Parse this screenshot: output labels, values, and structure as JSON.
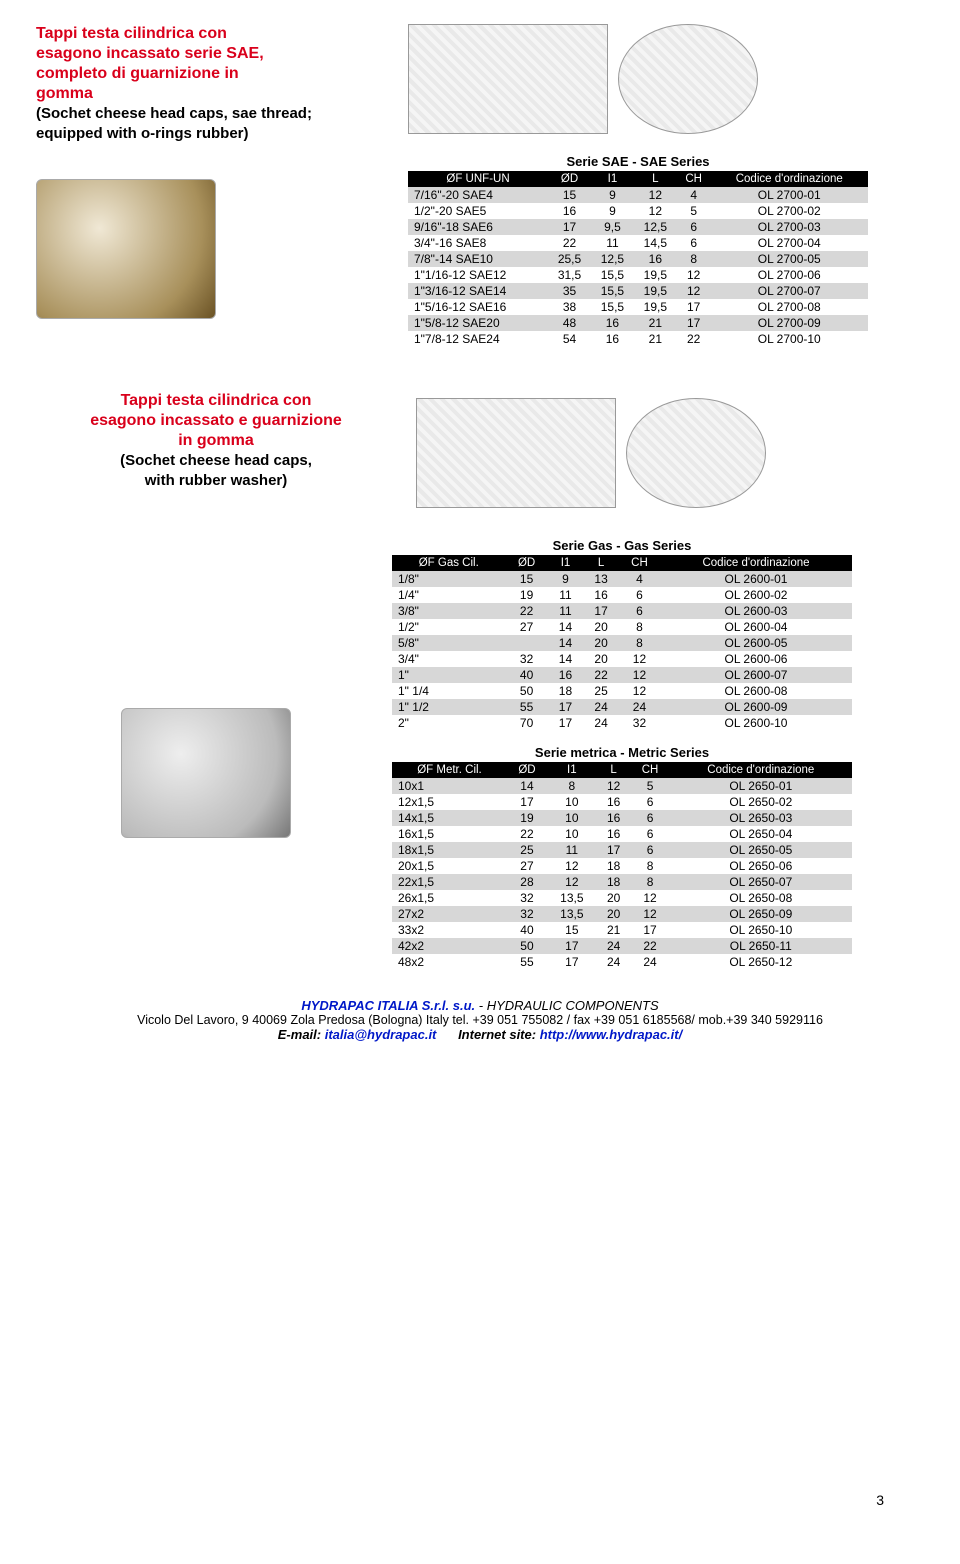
{
  "section1": {
    "title_lines": [
      "Tappi testa cilindrica con",
      "esagono incassato serie SAE,",
      "completo di guarnizione in",
      "gomma"
    ],
    "sub_lines": [
      "(Sochet cheese head caps, sae thread;",
      "equipped with o-rings rubber)"
    ],
    "table_caption": "Serie SAE - SAE Series",
    "headers": [
      "ØF UNF-UN",
      "ØD",
      "I1",
      "L",
      "CH",
      "Codice d'ordinazione"
    ],
    "rows": [
      [
        "7/16\"-20 SAE4",
        "15",
        "9",
        "12",
        "4",
        "OL 2700-01"
      ],
      [
        "1/2\"-20 SAE5",
        "16",
        "9",
        "12",
        "5",
        "OL 2700-02"
      ],
      [
        "9/16\"-18 SAE6",
        "17",
        "9,5",
        "12,5",
        "6",
        "OL 2700-03"
      ],
      [
        "3/4\"-16 SAE8",
        "22",
        "11",
        "14,5",
        "6",
        "OL 2700-04"
      ],
      [
        "7/8\"-14 SAE10",
        "25,5",
        "12,5",
        "16",
        "8",
        "OL 2700-05"
      ],
      [
        "1\"1/16-12 SAE12",
        "31,5",
        "15,5",
        "19,5",
        "12",
        "OL 2700-06"
      ],
      [
        "1\"3/16-12 SAE14",
        "35",
        "15,5",
        "19,5",
        "12",
        "OL 2700-07"
      ],
      [
        "1\"5/16-12 SAE16",
        "38",
        "15,5",
        "19,5",
        "17",
        "OL 2700-08"
      ],
      [
        "1\"5/8-12 SAE20",
        "48",
        "16",
        "21",
        "17",
        "OL 2700-09"
      ],
      [
        "1\"7/8-12 SAE24",
        "54",
        "16",
        "21",
        "22",
        "OL 2700-10"
      ]
    ]
  },
  "section2": {
    "title_lines": [
      "Tappi testa cilindrica con",
      "esagono incassato e guarnizione",
      "in gomma"
    ],
    "sub_lines": [
      "(Sochet cheese head caps,",
      "with rubber washer)"
    ],
    "gas": {
      "caption": "Serie Gas - Gas Series",
      "headers": [
        "ØF Gas Cil.",
        "ØD",
        "I1",
        "L",
        "CH",
        "Codice d'ordinazione"
      ],
      "rows": [
        [
          "1/8\"",
          "15",
          "9",
          "13",
          "4",
          "OL 2600-01"
        ],
        [
          "1/4\"",
          "19",
          "11",
          "16",
          "6",
          "OL 2600-02"
        ],
        [
          "3/8\"",
          "22",
          "11",
          "17",
          "6",
          "OL 2600-03"
        ],
        [
          "1/2\"",
          "27",
          "14",
          "20",
          "8",
          "OL 2600-04"
        ],
        [
          "5/8\"",
          "",
          "14",
          "20",
          "8",
          "OL 2600-05"
        ],
        [
          "3/4\"",
          "32",
          "14",
          "20",
          "12",
          "OL 2600-06"
        ],
        [
          "1\"",
          "40",
          "16",
          "22",
          "12",
          "OL 2600-07"
        ],
        [
          "1\" 1/4",
          "50",
          "18",
          "25",
          "12",
          "OL 2600-08"
        ],
        [
          "1\" 1/2",
          "55",
          "17",
          "24",
          "24",
          "OL 2600-09"
        ],
        [
          "2\"",
          "70",
          "17",
          "24",
          "32",
          "OL 2600-10"
        ]
      ]
    },
    "metric": {
      "caption": "Serie metrica - Metric Series",
      "headers": [
        "ØF Metr. Cil.",
        "ØD",
        "I1",
        "L",
        "CH",
        "Codice d'ordinazione"
      ],
      "rows": [
        [
          "10x1",
          "14",
          "8",
          "12",
          "5",
          "OL 2650-01"
        ],
        [
          "12x1,5",
          "17",
          "10",
          "16",
          "6",
          "OL 2650-02"
        ],
        [
          "14x1,5",
          "19",
          "10",
          "16",
          "6",
          "OL 2650-03"
        ],
        [
          "16x1,5",
          "22",
          "10",
          "16",
          "6",
          "OL 2650-04"
        ],
        [
          "18x1,5",
          "25",
          "11",
          "17",
          "6",
          "OL 2650-05"
        ],
        [
          "20x1,5",
          "27",
          "12",
          "18",
          "8",
          "OL 2650-06"
        ],
        [
          "22x1,5",
          "28",
          "12",
          "18",
          "8",
          "OL 2650-07"
        ],
        [
          "26x1,5",
          "32",
          "13,5",
          "20",
          "12",
          "OL 2650-08"
        ],
        [
          "27x2",
          "32",
          "13,5",
          "20",
          "12",
          "OL 2650-09"
        ],
        [
          "33x2",
          "40",
          "15",
          "21",
          "17",
          "OL 2650-10"
        ],
        [
          "42x2",
          "50",
          "17",
          "24",
          "22",
          "OL 2650-11"
        ],
        [
          "48x2",
          "55",
          "17",
          "24",
          "24",
          "OL 2650-12"
        ]
      ]
    }
  },
  "footer": {
    "company_b": "HYDRAPAC ITALIA S.r.l. s.u.",
    "company_rest": "- HYDRAULIC COMPONENTS",
    "addr": "Vicolo Del Lavoro, 9 40069 Zola Predosa (Bologna) Italy   tel. +39 051 755082 / fax +39 051 6185568/ mob.+39 340 5929116",
    "mail_label": "E-mail: ",
    "mail": "italia@hydrapac.it",
    "site_label": "Internet site: ",
    "site": "http://www.hydrapac.it/",
    "page": "3"
  },
  "style": {
    "title_color": "#d9001b",
    "header_bg": "#000000",
    "header_fg": "#ffffff",
    "row_alt_bg": "#d7d7d7",
    "link_color": "#0018c8"
  }
}
